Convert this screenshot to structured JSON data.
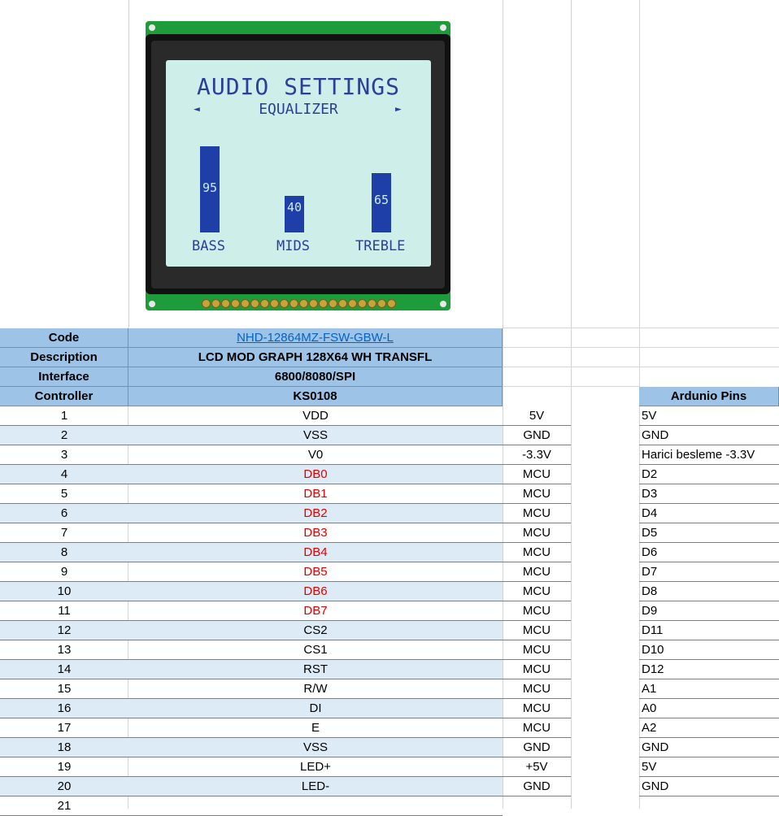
{
  "lcd": {
    "title": "AUDIO SETTINGS",
    "subtitle": "EQUALIZER",
    "arrow_left": "◄",
    "arrow_right": "►",
    "bars": [
      {
        "label": "BASS",
        "value": "95",
        "level": 0.95
      },
      {
        "label": "MIDS",
        "value": "40",
        "level": 0.4
      },
      {
        "label": "TREBLE",
        "value": "65",
        "level": 0.65
      }
    ]
  },
  "info": {
    "code_label": "Code",
    "code_value": "NHD-12864MZ-FSW-GBW-L",
    "desc_label": "Description",
    "desc_value": "LCD MOD GRAPH 128X64 WH TRANSFL",
    "iface_label": "Interface",
    "iface_value": "6800/8080/SPI",
    "ctrl_label": "Controller",
    "ctrl_value": "KS0108",
    "arduino_header": "Ardunio Pins"
  },
  "rows": [
    {
      "num": "1",
      "name": "VDD",
      "power": "5V",
      "ard": "5V",
      "red": false
    },
    {
      "num": "2",
      "name": "VSS",
      "power": "GND",
      "ard": "GND",
      "red": false
    },
    {
      "num": "3",
      "name": "V0",
      "power": "-3.3V",
      "ard": "Harici besleme -3.3V",
      "red": false
    },
    {
      "num": "4",
      "name": "DB0",
      "power": "MCU",
      "ard": "D2",
      "red": true
    },
    {
      "num": "5",
      "name": "DB1",
      "power": "MCU",
      "ard": "D3",
      "red": true
    },
    {
      "num": "6",
      "name": "DB2",
      "power": "MCU",
      "ard": "D4",
      "red": true
    },
    {
      "num": "7",
      "name": "DB3",
      "power": "MCU",
      "ard": "D5",
      "red": true
    },
    {
      "num": "8",
      "name": "DB4",
      "power": "MCU",
      "ard": "D6",
      "red": true
    },
    {
      "num": "9",
      "name": "DB5",
      "power": "MCU",
      "ard": "D7",
      "red": true
    },
    {
      "num": "10",
      "name": "DB6",
      "power": "MCU",
      "ard": "D8",
      "red": true
    },
    {
      "num": "11",
      "name": "DB7",
      "power": "MCU",
      "ard": "D9",
      "red": true
    },
    {
      "num": "12",
      "name": "CS2",
      "power": "MCU",
      "ard": "D11",
      "red": false
    },
    {
      "num": "13",
      "name": "CS1",
      "power": "MCU",
      "ard": "D10",
      "red": false
    },
    {
      "num": "14",
      "name": "RST",
      "power": "MCU",
      "ard": "D12",
      "red": false
    },
    {
      "num": "15",
      "name": "R/W",
      "power": "MCU",
      "ard": "A1",
      "red": false
    },
    {
      "num": "16",
      "name": "DI",
      "power": "MCU",
      "ard": "A0",
      "red": false
    },
    {
      "num": "17",
      "name": "E",
      "power": "MCU",
      "ard": "A2",
      "red": false
    },
    {
      "num": "18",
      "name": "VSS",
      "power": "GND",
      "ard": "GND",
      "red": false
    },
    {
      "num": "19",
      "name": "LED+",
      "power": "+5V",
      "ard": "5V",
      "red": false
    },
    {
      "num": "20",
      "name": "LED-",
      "power": "GND",
      "ard": "GND",
      "red": false
    },
    {
      "num": "21",
      "name": "",
      "power": "",
      "ard": "",
      "red": false
    }
  ]
}
